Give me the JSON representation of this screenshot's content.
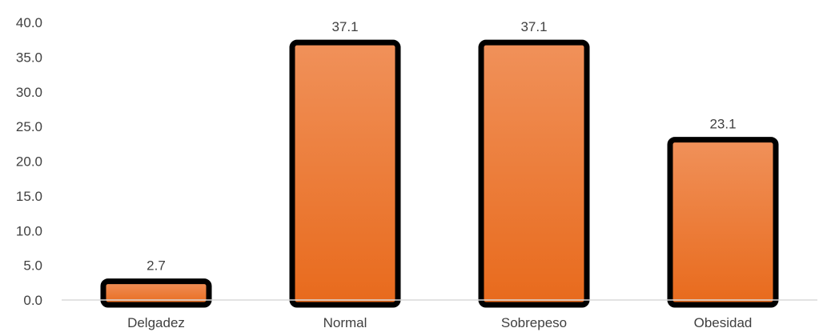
{
  "chart_data": {
    "type": "bar",
    "categories": [
      "Delgadez",
      "Normal",
      "Sobrepeso",
      "Obesidad"
    ],
    "values": [
      2.7,
      37.1,
      37.1,
      23.1
    ],
    "data_labels": [
      "2.7",
      "37.1",
      "37.1",
      "23.1"
    ],
    "title": "",
    "xlabel": "",
    "ylabel": "",
    "ylim": [
      0,
      40
    ],
    "yticks": [
      "0.0",
      "5.0",
      "10.0",
      "15.0",
      "20.0",
      "25.0",
      "30.0",
      "35.0",
      "40.0"
    ],
    "grid": false,
    "legend": "none",
    "colors": {
      "bar_top": "#F0915A",
      "bar_bottom": "#E86A1C",
      "bar_outline": "#000000",
      "axis": "#D9D9D9",
      "text": "#404040"
    }
  }
}
